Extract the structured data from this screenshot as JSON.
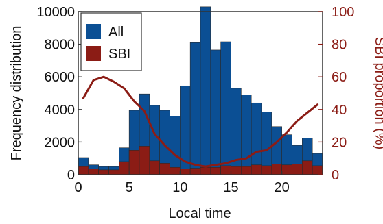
{
  "chart_data": {
    "type": "bar",
    "xlabel": "Local time",
    "ylabel_left": "Frequency distribution",
    "ylabel_right": "SBI proportion (%)",
    "xlim": [
      0,
      24
    ],
    "ylim_left": [
      0,
      10000
    ],
    "ylim_right": [
      0,
      100
    ],
    "x_ticks": [
      "0",
      "5",
      "10",
      "15",
      "20"
    ],
    "y_ticks_left": [
      "0",
      "2000",
      "4000",
      "6000",
      "8000",
      "10000"
    ],
    "y_ticks_right": [
      "0",
      "20",
      "40",
      "60",
      "80",
      "100"
    ],
    "legend_position": "top-left",
    "grid": false,
    "hours": [
      0,
      1,
      2,
      3,
      4,
      5,
      6,
      7,
      8,
      9,
      10,
      11,
      12,
      13,
      14,
      15,
      16,
      17,
      18,
      19,
      20,
      21,
      22,
      23
    ],
    "series": [
      {
        "name": "All",
        "color": "#0b4f94",
        "values": [
          1050,
          600,
          500,
          500,
          1650,
          3950,
          4950,
          4250,
          3950,
          3600,
          5450,
          8100,
          10300,
          7650,
          8150,
          5300,
          4900,
          4400,
          3850,
          2950,
          2450,
          1800,
          2250,
          1300
        ]
      },
      {
        "name": "SBI",
        "color": "#8b1c15",
        "values": [
          500,
          350,
          300,
          300,
          800,
          1500,
          1750,
          850,
          700,
          450,
          350,
          400,
          450,
          450,
          550,
          500,
          500,
          600,
          550,
          650,
          600,
          650,
          850,
          550
        ]
      }
    ],
    "sbi_proportion_line": {
      "color": "#8b1c15",
      "x": [
        0.5,
        1.5,
        2.5,
        3.5,
        4.5,
        5.5,
        6.5,
        7.5,
        8.5,
        9.5,
        10.5,
        11.5,
        12.5,
        13.5,
        14.5,
        15.5,
        16.5,
        17.5,
        18.5,
        19.5,
        20.5,
        21.5,
        22.5,
        23.5
      ],
      "y": [
        47,
        58,
        60,
        57,
        53,
        45,
        39,
        25,
        18,
        12,
        8,
        6,
        5,
        6,
        7,
        9,
        10,
        14,
        15,
        20,
        26,
        33,
        38,
        43
      ]
    }
  }
}
